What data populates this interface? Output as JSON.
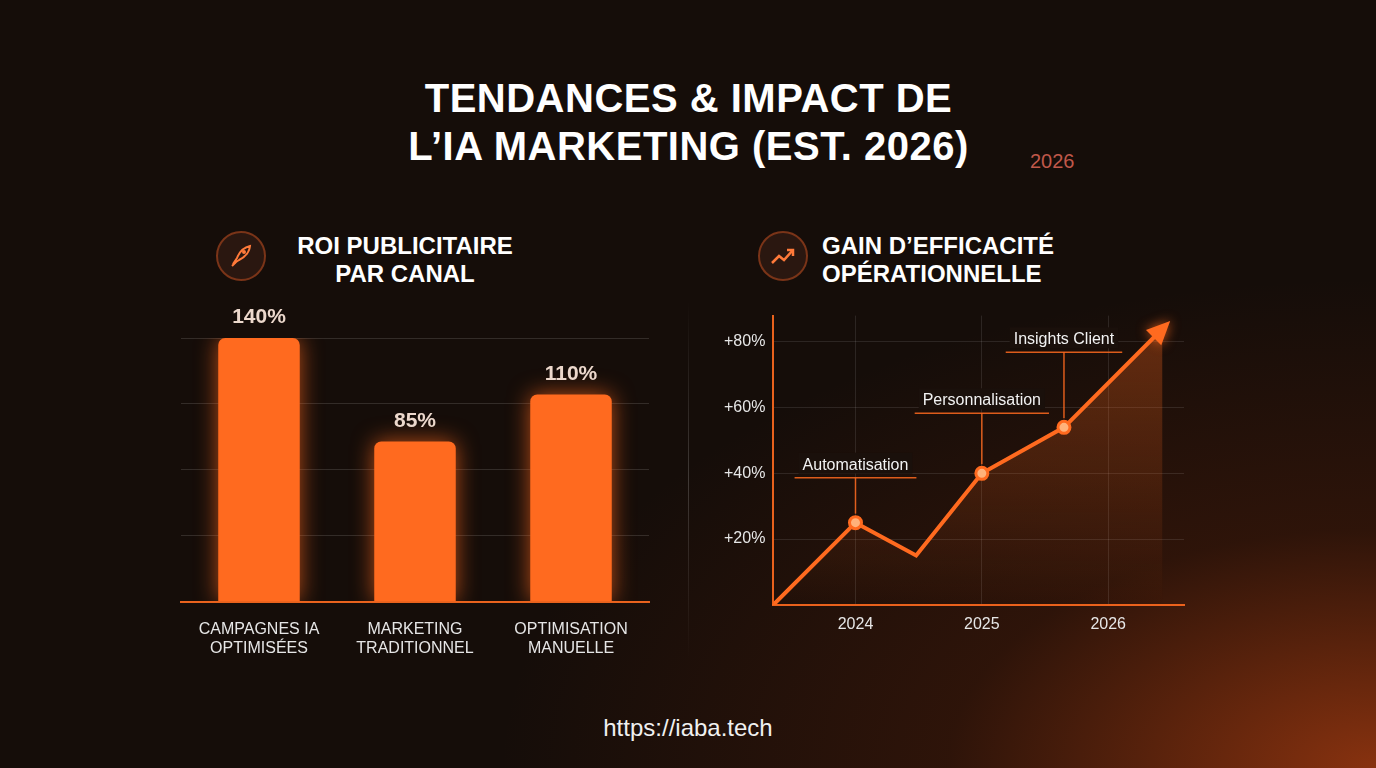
{
  "title": "TENDANCES & IMPACT DE L’IA MARKETING (EST. 2026)",
  "title_note": "2026",
  "footer": "https://iaba.tech",
  "chart_data": [
    {
      "type": "bar",
      "title": "ROI PUBLICITAIRE PAR CANAL",
      "categories": [
        "CAMPAGNES IA OPTIMISÉES",
        "MARKETING TRADITIONNEL",
        "OPTIMISATION MANUELLE"
      ],
      "values": [
        140,
        85,
        110
      ],
      "value_labels": [
        "140%",
        "85%",
        "110%"
      ],
      "data_labels": true,
      "color": "#ff6a1f",
      "ylim": [
        0,
        140
      ],
      "yticks": [
        0,
        35,
        70,
        105,
        140
      ],
      "grid": true,
      "tick_labels": "x"
    },
    {
      "type": "line",
      "title": "GAIN D’EFFICACITÉ OPÉRATIONNELLE",
      "x": [
        2023.35,
        2024,
        2024.48,
        2025,
        2025.65,
        2026.43
      ],
      "values": [
        0,
        25,
        15,
        40,
        54,
        84
      ],
      "color": "#ff6a1f",
      "marker": "circle",
      "xlim": [
        2023.35,
        2026.6
      ],
      "xticks": [
        2024,
        2025,
        2026
      ],
      "ylim": [
        0,
        88
      ],
      "yticks": [
        {
          "value": 20,
          "label": "+20%"
        },
        {
          "value": 40,
          "label": "+40%"
        },
        {
          "value": 60,
          "label": "+60%"
        },
        {
          "value": 80,
          "label": "+80%"
        }
      ],
      "grid": true,
      "annotations": [
        {
          "text": "Automatisation",
          "x": 2024,
          "y": 25
        },
        {
          "text": "Personnalisation",
          "x": 2025,
          "y": 40
        },
        {
          "text": "Insights Client",
          "x": 2025.65,
          "y": 54
        }
      ]
    }
  ]
}
